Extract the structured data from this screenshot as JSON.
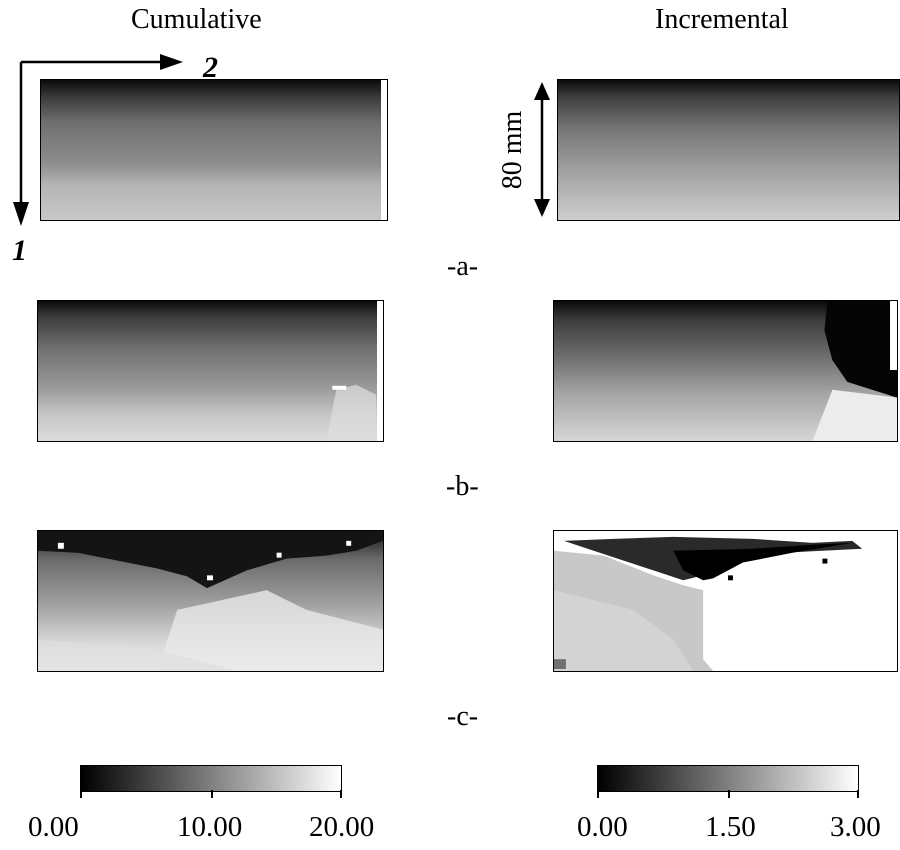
{
  "columns": {
    "left_title": "Cumulative",
    "right_title": "Incremental"
  },
  "axes": {
    "dir1_label": "1",
    "dir2_label": "2"
  },
  "scale_label": "80 mm",
  "rows": [
    {
      "label": "-a-"
    },
    {
      "label": "-b-"
    },
    {
      "label": "-c-"
    }
  ],
  "colorbars": {
    "cumulative": {
      "min": 0,
      "max": 20,
      "ticks": [
        "0.00",
        "10.00",
        "20.00"
      ]
    },
    "incremental": {
      "min": 0,
      "max": 3,
      "ticks": [
        "0.00",
        "1.50",
        "3.00"
      ]
    }
  },
  "colormap": {
    "low": "#000000",
    "high": "#ffffff"
  }
}
